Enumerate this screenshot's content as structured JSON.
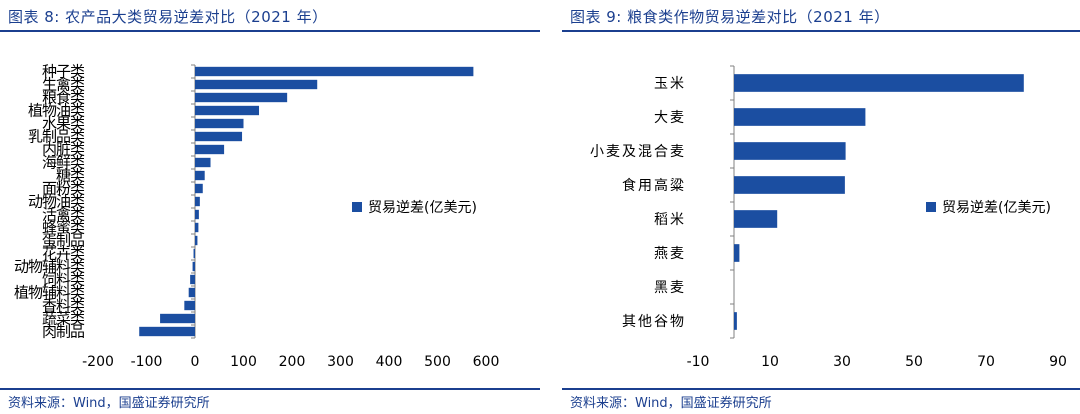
{
  "charts": [
    {
      "label": "图表 8:",
      "title": "农产品大类贸易逆差对比（2021 年）",
      "source": "资料来源：Wind，国盛证券研究所"
    },
    {
      "label": "图表 9:",
      "title": "粮食类作物贸易逆差对比（2021 年）",
      "source": "资料来源：Wind，国盛证券研究所"
    }
  ],
  "chart_data": [
    {
      "type": "bar",
      "orientation": "horizontal",
      "title": "农产品大类贸易逆差对比（2021 年）",
      "categories": [
        "种子类",
        "生禽类",
        "粮食类",
        "植物油类",
        "水果类",
        "乳制品类",
        "内脏类",
        "海鲜类",
        "糖类",
        "面粉类",
        "动物油类",
        "活禽类",
        "蜂蜜类",
        "蛋制品",
        "花卉类",
        "动物辅料类",
        "饲料类",
        "植物辅料类",
        "香料类",
        "蔬菜类",
        "肉制品"
      ],
      "series": [
        {
          "name": "贸易逆差(亿美元)",
          "values": [
            574,
            252,
            190,
            132,
            100,
            97,
            60,
            32,
            20,
            16,
            10,
            8,
            7,
            5,
            -3,
            -5,
            -10,
            -13,
            -22,
            -72,
            -115
          ]
        }
      ],
      "xlim": [
        -200,
        600
      ],
      "xticks": [
        "-200",
        "-100",
        "0",
        "100",
        "200",
        "300",
        "400",
        "500",
        "600"
      ],
      "legend": "right",
      "color": "#1b4ea1"
    },
    {
      "type": "bar",
      "orientation": "horizontal",
      "title": "粮食类作物贸易逆差对比（2021 年）",
      "categories": [
        "玉米",
        "大麦",
        "小麦及混合麦",
        "食用高粱",
        "稻米",
        "燕麦",
        "黑麦",
        "其他谷物"
      ],
      "series": [
        {
          "name": "贸易逆差(亿美元)",
          "values": [
            80.5,
            36.5,
            31,
            30.8,
            12,
            1.5,
            0,
            0.8
          ]
        }
      ],
      "xlim": [
        -10,
        90
      ],
      "xticks": [
        "-10",
        "10",
        "30",
        "50",
        "70",
        "90"
      ],
      "legend": "right",
      "color": "#1b4ea1"
    }
  ]
}
